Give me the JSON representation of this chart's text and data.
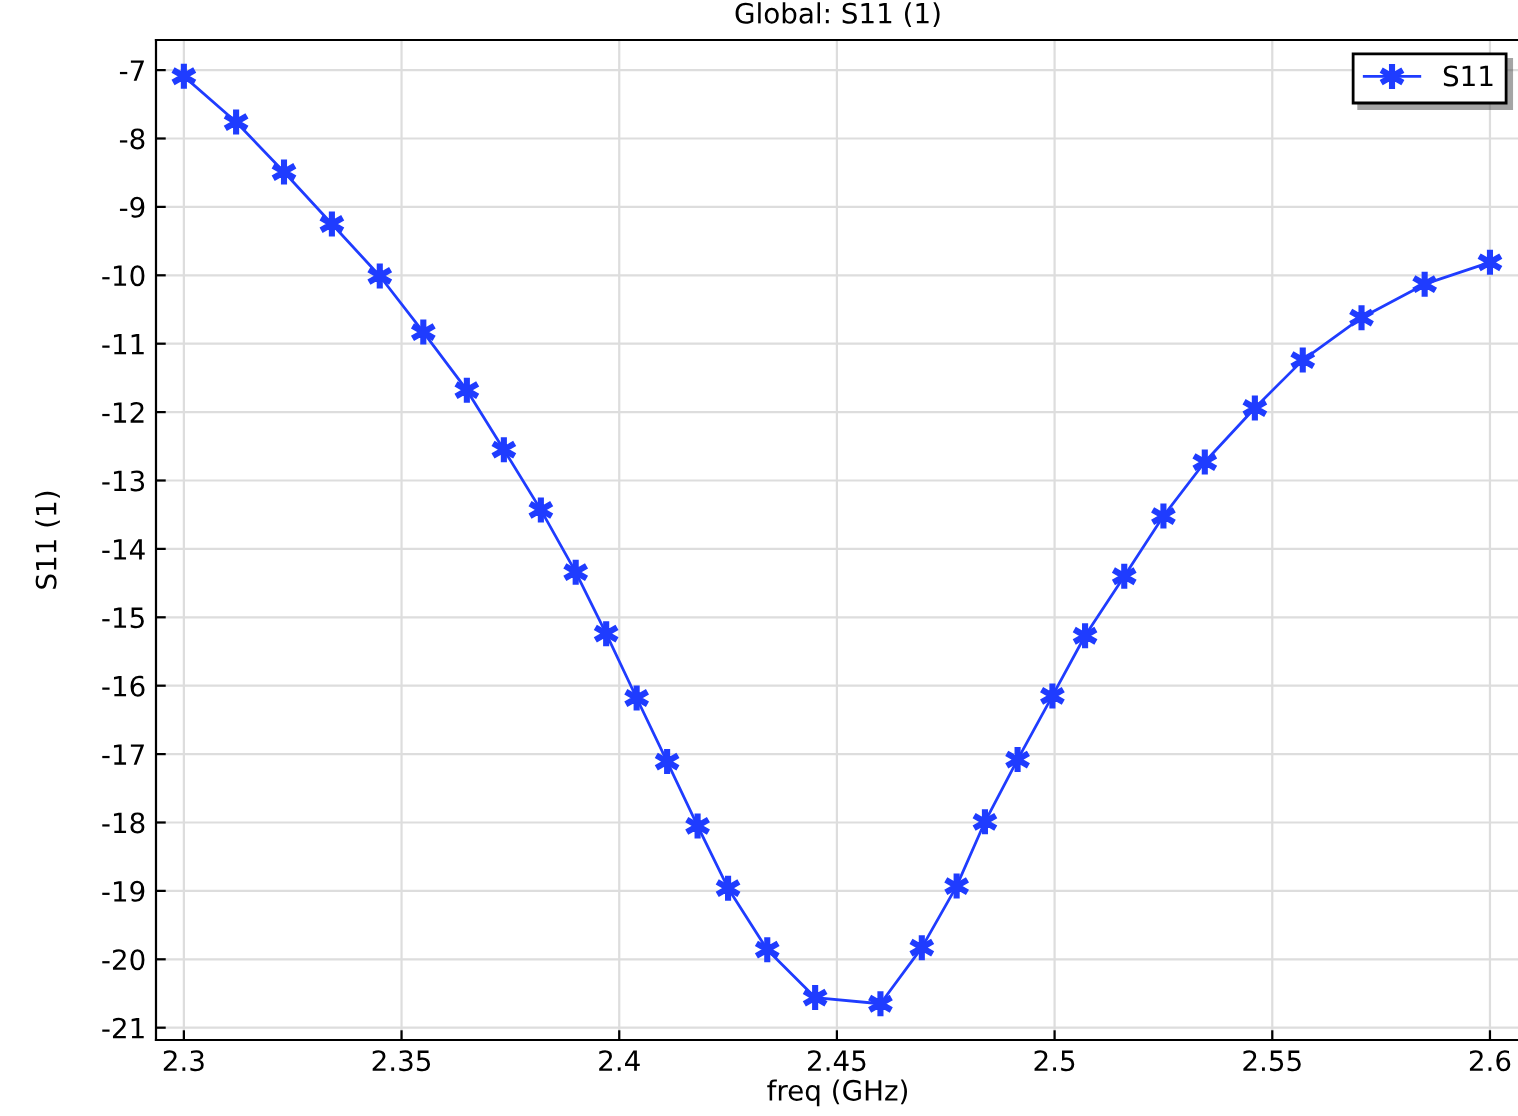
{
  "chart_data": {
    "type": "line",
    "title": "Global: S11 (1)",
    "xlabel": "freq (GHz)",
    "ylabel": "S11 (1)",
    "series": [
      {
        "name": "S11",
        "color": "#1f3cff",
        "x": [
          2.3,
          2.312,
          2.323,
          2.334,
          2.345,
          2.355,
          2.365,
          2.3735,
          2.382,
          2.39,
          2.397,
          2.404,
          2.411,
          2.418,
          2.425,
          2.434,
          2.445,
          2.46,
          2.4695,
          2.4775,
          2.484,
          2.4915,
          2.4995,
          2.507,
          2.516,
          2.525,
          2.5345,
          2.546,
          2.557,
          2.5705,
          2.585,
          2.6
        ],
        "values": [
          -7.09,
          -7.76,
          -8.49,
          -9.25,
          -10.01,
          -10.83,
          -11.68,
          -12.55,
          -13.43,
          -14.34,
          -15.24,
          -16.18,
          -17.11,
          -18.05,
          -18.96,
          -19.86,
          -20.56,
          -20.65,
          -19.83,
          -18.93,
          -17.99,
          -17.08,
          -16.15,
          -15.27,
          -14.4,
          -13.52,
          -12.73,
          -11.94,
          -11.24,
          -10.62,
          -10.13,
          -9.81
        ]
      }
    ],
    "xlim": [
      2.2936,
      2.6069
    ],
    "ylim": [
      -21.18,
      -6.56
    ],
    "xticks": [
      2.3,
      2.35,
      2.4,
      2.45,
      2.5,
      2.55,
      2.6
    ],
    "yticks": [
      -7,
      -8,
      -9,
      -10,
      -11,
      -12,
      -13,
      -14,
      -15,
      -16,
      -17,
      -18,
      -19,
      -20,
      -21
    ],
    "grid": true,
    "legend": "top right",
    "marker": "cross",
    "line_style": "solid"
  }
}
